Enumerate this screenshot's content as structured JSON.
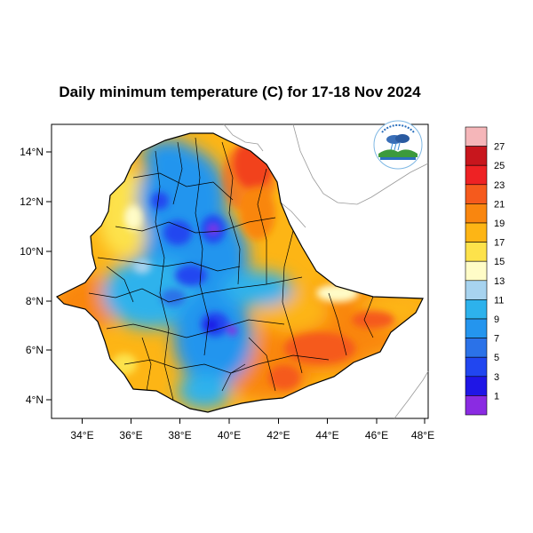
{
  "title": "Daily minimum temperature (C) for 17-18 Nov 2024",
  "axes": {
    "lon_ticks": [
      "34°E",
      "36°E",
      "38°E",
      "40°E",
      "42°E",
      "44°E",
      "46°E",
      "48°E"
    ],
    "lat_ticks": [
      "14°N",
      "12°N",
      "10°N",
      "8°N",
      "6°N",
      "4°N"
    ],
    "lon_range": [
      33,
      48.2
    ],
    "lat_range": [
      3.3,
      15
    ]
  },
  "colorbar": {
    "labels": [
      "27",
      "25",
      "23",
      "21",
      "19",
      "17",
      "15",
      "13",
      "11",
      "9",
      "7",
      "5",
      "3",
      "1"
    ],
    "colors": [
      "#f5b6b9",
      "#c8161d",
      "#ee2224",
      "#f55a1d",
      "#f9860f",
      "#fdb515",
      "#fde24b",
      "#fffcc7",
      "#a7d3ef",
      "#2db2ec",
      "#2495ee",
      "#2b72e8",
      "#2146f0",
      "#1f16e6",
      "#8a2be2"
    ]
  },
  "colors": {
    "cold": "#2472e8",
    "deep_cold": "#1f2ee6",
    "warm": "#f9a21a",
    "hot": "#f5541e",
    "border": "#000000",
    "coast": "#888888"
  },
  "logo_icon": "meteorology-agency-logo"
}
